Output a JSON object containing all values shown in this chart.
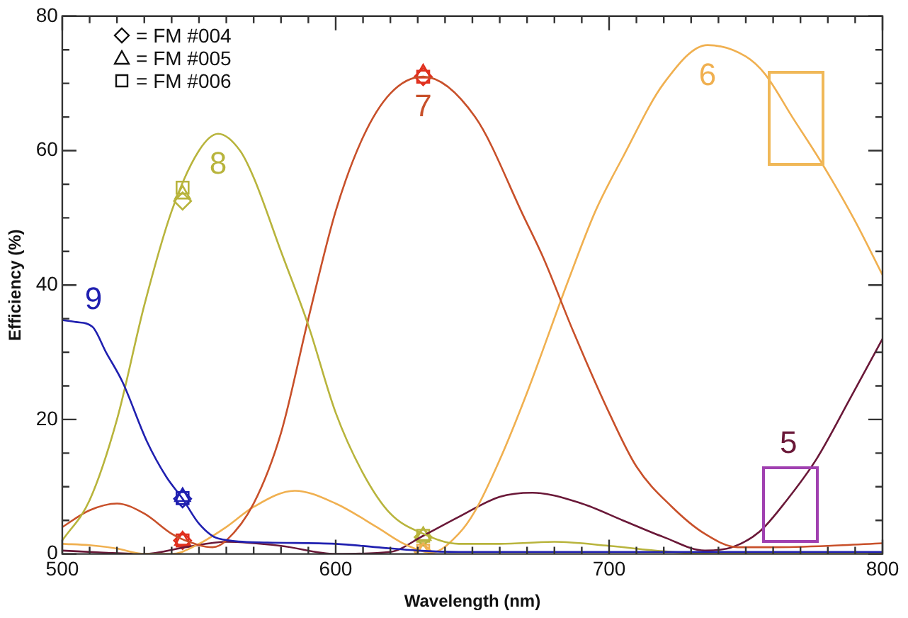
{
  "chart_data": {
    "type": "line",
    "xlabel": "Wavelength (nm)",
    "ylabel": "Efficiency (%)",
    "xlim": [
      500,
      800
    ],
    "ylim": [
      0,
      80
    ],
    "xticks": [
      500,
      {
        "value": 510,
        "label": null
      },
      {
        "value": 520,
        "label": null
      },
      {
        "value": 530,
        "label": null
      },
      {
        "value": 540,
        "label": null
      },
      {
        "value": 550,
        "label": null
      },
      {
        "value": 560,
        "label": null
      },
      {
        "value": 570,
        "label": null
      },
      {
        "value": 580,
        "label": null
      },
      {
        "value": 590,
        "label": null
      },
      600,
      {
        "value": 610,
        "label": null
      },
      {
        "value": 620,
        "label": null
      },
      {
        "value": 630,
        "label": null
      },
      {
        "value": 640,
        "label": null
      },
      {
        "value": 650,
        "label": null
      },
      {
        "value": 660,
        "label": null
      },
      {
        "value": 670,
        "label": null
      },
      {
        "value": 680,
        "label": null
      },
      {
        "value": 690,
        "label": null
      },
      700,
      {
        "value": 710,
        "label": null
      },
      {
        "value": 720,
        "label": null
      },
      {
        "value": 730,
        "label": null
      },
      {
        "value": 740,
        "label": null
      },
      {
        "value": 750,
        "label": null
      },
      {
        "value": 760,
        "label": null
      },
      {
        "value": 770,
        "label": null
      },
      {
        "value": 780,
        "label": null
      },
      {
        "value": 790,
        "label": null
      },
      800
    ],
    "yticks": [
      0,
      {
        "value": 5,
        "label": null
      },
      {
        "value": 10,
        "label": null
      },
      {
        "value": 15,
        "label": null
      },
      20,
      {
        "value": 25,
        "label": null
      },
      {
        "value": 30,
        "label": null
      },
      {
        "value": 35,
        "label": null
      },
      40,
      {
        "value": 45,
        "label": null
      },
      {
        "value": 50,
        "label": null
      },
      {
        "value": 55,
        "label": null
      },
      60,
      {
        "value": 65,
        "label": null
      },
      {
        "value": 70,
        "label": null
      },
      {
        "value": 75,
        "label": null
      },
      80
    ],
    "annotations": [
      "= FM #004",
      "= FM #005",
      "= FM #006"
    ],
    "series": [
      {
        "name": "9",
        "color": "#2020b0",
        "x": [
          500,
          505,
          511,
          516,
          522,
          531,
          538,
          544,
          550,
          557,
          575,
          600,
          615,
          630,
          645,
          700,
          800
        ],
        "values": [
          34.8,
          34.5,
          33.8,
          30,
          25.6,
          16.7,
          11.5,
          8.2,
          4.5,
          2.3,
          1.7,
          1.5,
          1,
          0.5,
          0.3,
          0.3,
          0.3
        ]
      },
      {
        "name": "8",
        "color": "#b8b43c",
        "x": [
          500,
          510,
          520,
          530,
          540,
          550,
          557,
          565,
          570,
          580,
          590,
          600,
          610,
          620,
          632,
          645,
          660,
          680,
          700,
          720,
          740,
          800
        ],
        "values": [
          2,
          8,
          20,
          37,
          51,
          60,
          62.5,
          60,
          56,
          45,
          34,
          21,
          12,
          6,
          3,
          1.5,
          1.5,
          1.8,
          1.2,
          0.4,
          0,
          0
        ]
      },
      {
        "name": "7",
        "color": "#c8502a",
        "x": [
          500,
          510,
          520,
          530,
          540,
          545,
          555,
          560,
          570,
          580,
          590,
          600,
          610,
          620,
          632,
          651,
          669,
          676,
          687,
          700,
          710,
          723,
          735,
          747,
          760,
          780,
          800
        ],
        "values": [
          4,
          6.5,
          7.5,
          6,
          3,
          2,
          1,
          2,
          7.5,
          18,
          35,
          51,
          62,
          68.5,
          71,
          65,
          50,
          44,
          33,
          21,
          13,
          7,
          3,
          1,
          1,
          1.2,
          1.6
        ]
      },
      {
        "name": "6",
        "color": "#f0b050",
        "x": [
          500,
          510,
          520,
          530,
          540,
          550,
          560,
          570,
          585,
          600,
          615,
          625,
          635,
          645,
          651,
          660,
          670,
          685,
          695,
          705,
          720,
          736,
          750,
          757,
          767,
          778,
          790,
          800
        ],
        "values": [
          1.5,
          1.3,
          0.8,
          0,
          0,
          1.5,
          4,
          7,
          9.4,
          7.5,
          4,
          1.5,
          0.2,
          3,
          6.4,
          14,
          24,
          40.6,
          51,
          59,
          70,
          75.7,
          74,
          71.4,
          65,
          58,
          49.5,
          41.5
        ]
      },
      {
        "name": "5",
        "color": "#6a1838",
        "x": [
          500,
          515,
          530,
          545,
          560,
          580,
          600,
          620,
          632,
          645,
          660,
          672,
          690,
          705,
          720,
          735,
          745,
          755,
          765,
          776,
          788,
          800
        ],
        "values": [
          0.5,
          0.2,
          0,
          1,
          1.8,
          1.2,
          0,
          0.3,
          2.7,
          5.5,
          8.5,
          9.1,
          7.5,
          5,
          2.5,
          0.5,
          1,
          3.3,
          8,
          14.2,
          23,
          32
        ]
      },
      {
        "type": "scatter",
        "marker": "diamond",
        "x": [
          544,
          544,
          544,
          632,
          632,
          632
        ],
        "values": [
          8.2,
          2,
          52.5,
          71,
          2.5,
          0.3
        ],
        "colors": [
          "#2020b0",
          "#e0301e",
          "#b8b43c",
          "#e0301e",
          "#b8b43c",
          "#f0b050"
        ]
      },
      {
        "type": "scatter",
        "marker": "triangle",
        "x": [
          544,
          544,
          544,
          632,
          632,
          632
        ],
        "values": [
          8.5,
          2,
          53.5,
          71.5,
          2.7,
          0.3
        ],
        "colors": [
          "#2020b0",
          "#e0301e",
          "#b8b43c",
          "#e0301e",
          "#b8b43c",
          "#f0b050"
        ]
      },
      {
        "type": "scatter",
        "marker": "square",
        "x": [
          544,
          544,
          544,
          632,
          632,
          632
        ],
        "values": [
          8.3,
          2,
          54.5,
          71,
          2.7,
          0.5
        ],
        "colors": [
          "#2020b0",
          "#e0301e",
          "#b8b43c",
          "#e0301e",
          "#b8b43c",
          "#f0b050"
        ]
      }
    ]
  }
}
